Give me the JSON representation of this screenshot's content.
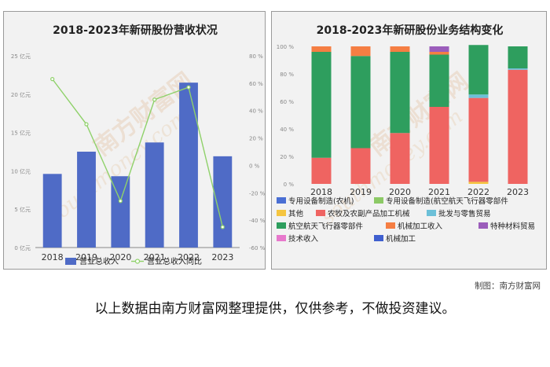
{
  "chart_data": [
    {
      "type": "bar",
      "title": "2018-2023年新研股份营收状况",
      "categories": [
        "2018",
        "2019",
        "2020",
        "2021",
        "2022",
        "2023"
      ],
      "series": [
        {
          "name": "营业总收入",
          "type": "bar",
          "axis": "left",
          "color": "#4f6bc6",
          "values": [
            9.6,
            12.5,
            9.3,
            13.7,
            21.5,
            11.9
          ]
        },
        {
          "name": "营业总收入同比",
          "type": "line",
          "axis": "right",
          "color": "#8fd16a",
          "values": [
            63,
            30,
            -26,
            48,
            57,
            -45
          ]
        }
      ],
      "y_left": {
        "ticks": [
          "0 亿元",
          "5 亿元",
          "10 亿元",
          "15 亿元",
          "20 亿元",
          "25 亿元"
        ],
        "ylim": [
          0,
          25
        ]
      },
      "y_right": {
        "ticks": [
          "-60 %",
          "-40 %",
          "-20 %",
          "0 %",
          "20 %",
          "40 %",
          "60 %",
          "80 %"
        ],
        "ylim": [
          -60,
          80
        ]
      },
      "legend_position": "bottom",
      "grid": false
    },
    {
      "type": "bar",
      "stacked": true,
      "title": "2018-2023年新研股份业务结构变化",
      "categories": [
        "2018",
        "2019",
        "2020",
        "2021",
        "2022",
        "2023"
      ],
      "y_ticks": [
        "0 %",
        "20 %",
        "40 %",
        "60 %",
        "80 %",
        "100 %"
      ],
      "ylim": [
        0,
        100
      ],
      "series": [
        {
          "name": "专用设备制造(农机)",
          "color": "#4a6fd4",
          "values": [
            0,
            0,
            0,
            0,
            0,
            0
          ]
        },
        {
          "name": "专用设备制造(航空航天飞行器零部件",
          "color": "#8cc966",
          "values": [
            0,
            0,
            0,
            0,
            0,
            0
          ]
        },
        {
          "name": "其他",
          "color": "#f5c540",
          "values": [
            0,
            0,
            0,
            0,
            1.5,
            0
          ]
        },
        {
          "name": "农牧及农副产品加工机械",
          "color": "#ef6461",
          "values": [
            19,
            26,
            37,
            56,
            61,
            83
          ]
        },
        {
          "name": "批发与零售贸易",
          "color": "#6cc0d8",
          "values": [
            0,
            0,
            0,
            0,
            2.5,
            1
          ]
        },
        {
          "name": "航空航天飞行器零部件",
          "color": "#2e9e5e",
          "values": [
            77,
            67,
            59,
            38,
            36,
            16
          ]
        },
        {
          "name": "机械加工收入",
          "color": "#f57e43",
          "values": [
            4,
            7,
            4,
            2,
            0,
            0
          ]
        },
        {
          "name": "特种材料贸易",
          "color": "#9b5dbb",
          "values": [
            0,
            0,
            0,
            4,
            0,
            0
          ]
        },
        {
          "name": "技术收入",
          "color": "#e778cc",
          "values": [
            0,
            0,
            0,
            0,
            0,
            0
          ]
        },
        {
          "name": "机械加工",
          "color": "#3f5fcf",
          "values": [
            0,
            0,
            0,
            0,
            0,
            0
          ]
        }
      ],
      "legend_position": "bottom",
      "grid": false
    }
  ],
  "credit": "制图：南方财富网",
  "note": "以上数据由南方财富网整理提供，仅供参考，不做投资建议。",
  "watermark": {
    "brand": "南方财富网",
    "url": "southmoney.com"
  }
}
